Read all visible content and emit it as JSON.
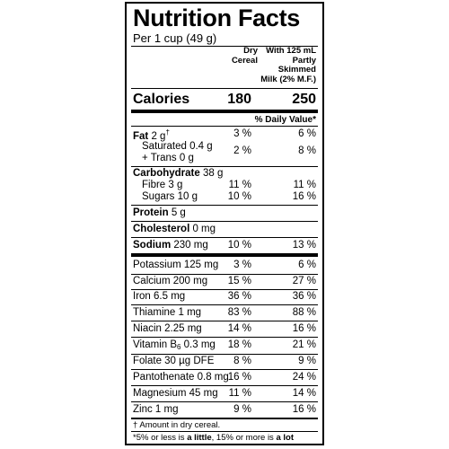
{
  "title": "Nutrition Facts",
  "serving": "Per 1 cup (49 g)",
  "columns": {
    "dry_line1": "Dry",
    "dry_line2": "Cereal",
    "milk_line1": "With 125 mL",
    "milk_line2": "Partly",
    "milk_line3": "Skimmed",
    "milk_line4": "Milk (2% M.F.)"
  },
  "calories": {
    "label": "Calories",
    "dry": "180",
    "milk": "250"
  },
  "dv_header": "% Daily Value*",
  "nutrients": {
    "fat": {
      "name": "Fat",
      "amount": "2 g",
      "mark": "†",
      "dry": "3 %",
      "milk": "6 %"
    },
    "saturated": {
      "line1": "Saturated 0.4 g",
      "line2": "+ Trans 0 g",
      "dry": "2 %",
      "milk": "8 %"
    },
    "carbohydrate": {
      "name": "Carbohydrate",
      "amount": "38 g"
    },
    "fibre": {
      "name": "Fibre 3 g",
      "dry": "11 %",
      "milk": "11 %"
    },
    "sugars": {
      "name": "Sugars 10 g",
      "dry": "10 %",
      "milk": "16 %"
    },
    "protein": {
      "name": "Protein",
      "amount": "5 g"
    },
    "cholesterol": {
      "name": "Cholesterol",
      "amount": "0 mg"
    },
    "sodium": {
      "name": "Sodium",
      "amount": "230 mg",
      "dry": "10 %",
      "milk": "13 %"
    }
  },
  "vitamins": [
    {
      "name": "Potassium 125 mg",
      "dry": "3 %",
      "milk": "6 %"
    },
    {
      "name": "Calcium 200 mg",
      "dry": "15 %",
      "milk": "27 %"
    },
    {
      "name": "Iron 6.5 mg",
      "dry": "36 %",
      "milk": "36 %"
    },
    {
      "name": "Thiamine 1 mg",
      "dry": "83 %",
      "milk": "88 %"
    },
    {
      "name": "Niacin 2.25 mg",
      "dry": "14 %",
      "milk": "16 %"
    },
    {
      "name_pre": "Vitamin B",
      "name_sub": "6",
      "name_post": " 0.3 mg",
      "dry": "18 %",
      "milk": "21 %"
    },
    {
      "name": "Folate 30 µg DFE",
      "dry": "8 %",
      "milk": "9 %"
    },
    {
      "name": "Pantothenate 0.8 mg",
      "dry": "16 %",
      "milk": "24 %"
    },
    {
      "name": "Magnesium 45 mg",
      "dry": "11 %",
      "milk": "14 %"
    },
    {
      "name": "Zinc 1 mg",
      "dry": "9 %",
      "milk": "16 %"
    }
  ],
  "footnotes": {
    "dagger": "† Amount in dry cereal.",
    "dv_pre": "*5% or less is ",
    "dv_little": "a little",
    "dv_mid": ", 15% or more is ",
    "dv_lot": "a lot"
  }
}
